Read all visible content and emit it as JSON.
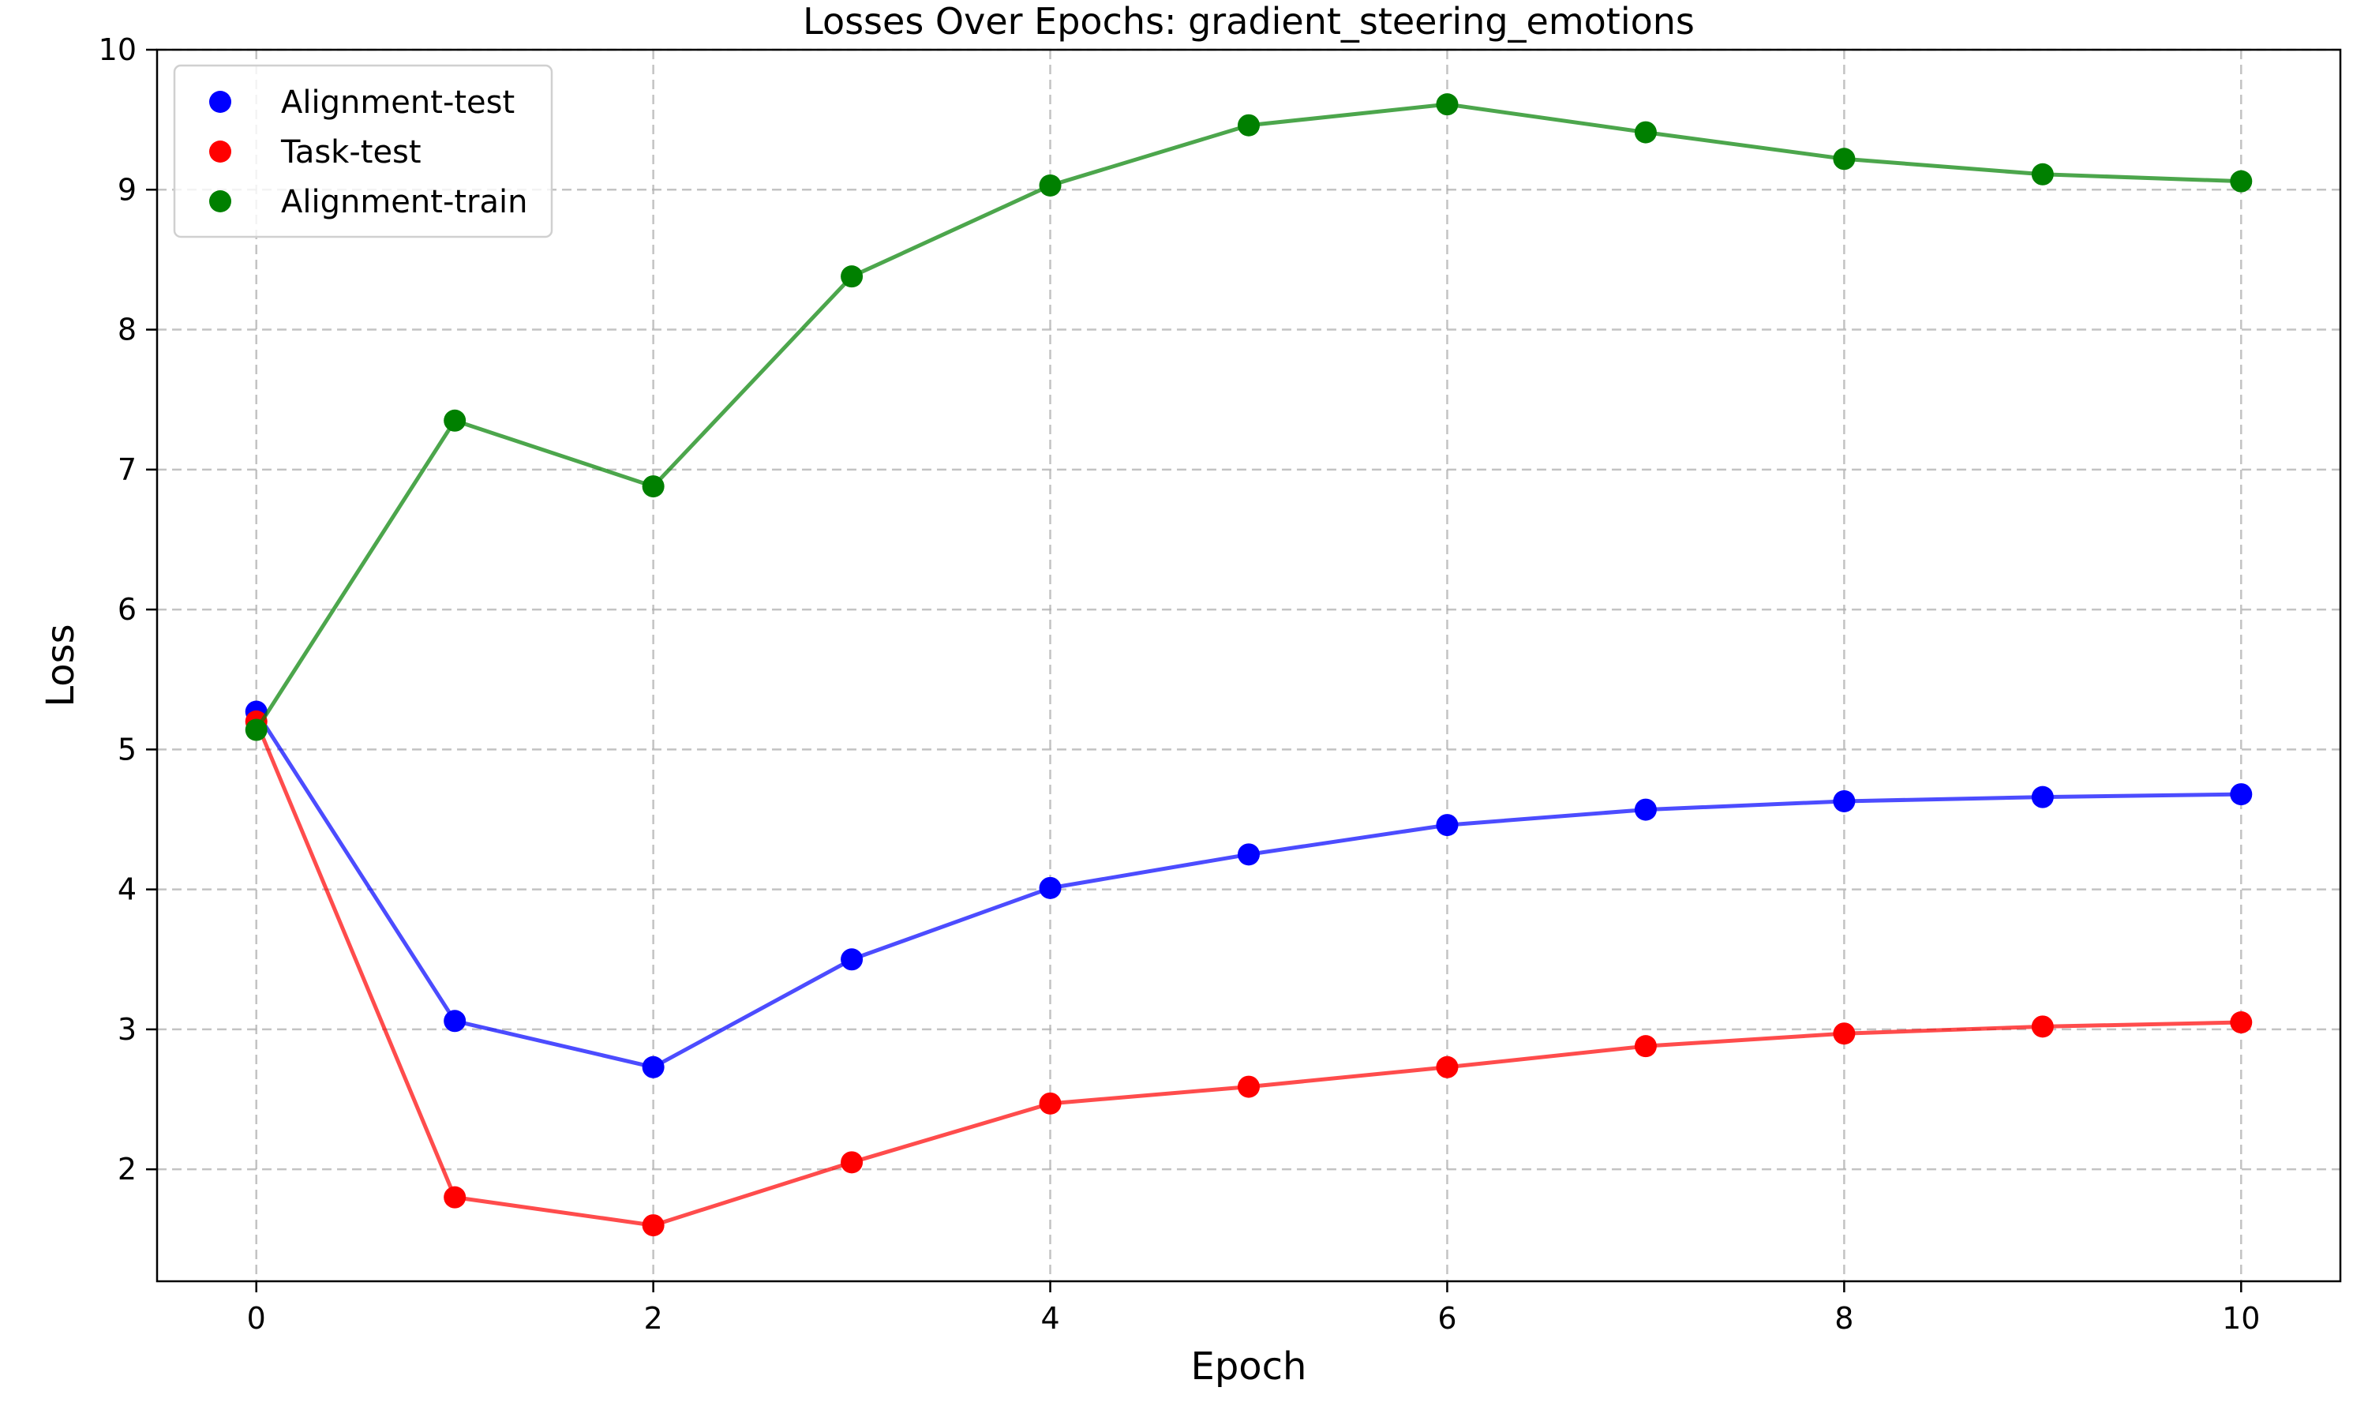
{
  "chart_data": {
    "type": "line",
    "title": "Losses Over Epochs: gradient_steering_emotions",
    "xlabel": "Epoch",
    "ylabel": "Loss",
    "xlim": [
      -0.5,
      10.5
    ],
    "ylim": [
      1.2,
      10
    ],
    "x_ticks": [
      0,
      2,
      4,
      6,
      8,
      10
    ],
    "y_ticks": [
      2,
      3,
      4,
      5,
      6,
      7,
      8,
      9,
      10
    ],
    "grid": true,
    "legend_position": "top-left",
    "x": [
      0,
      1,
      2,
      3,
      4,
      5,
      6,
      7,
      8,
      9,
      10
    ],
    "series": [
      {
        "name": "Alignment-test",
        "color": "#0000ff",
        "values": [
          5.27,
          3.06,
          2.73,
          3.5,
          4.01,
          4.25,
          4.46,
          4.57,
          4.63,
          4.66,
          4.68
        ]
      },
      {
        "name": "Task-test",
        "color": "#ff0000",
        "values": [
          5.2,
          1.8,
          1.6,
          2.05,
          2.47,
          2.59,
          2.73,
          2.88,
          2.97,
          3.02,
          3.05
        ]
      },
      {
        "name": "Alignment-train",
        "color": "#008000",
        "values": [
          5.14,
          7.35,
          6.88,
          8.38,
          9.03,
          9.46,
          9.61,
          9.41,
          9.22,
          9.11,
          9.06
        ]
      }
    ]
  }
}
